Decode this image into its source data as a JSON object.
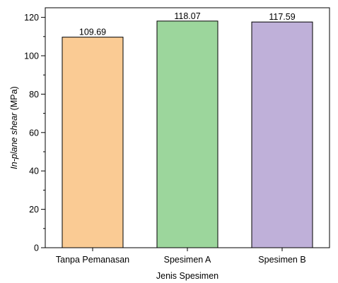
{
  "chart_data": {
    "type": "bar",
    "categories": [
      "Tanpa Pemanasan",
      "Spesimen A",
      "Spesimen B"
    ],
    "values": [
      109.69,
      118.07,
      117.59
    ],
    "data_labels": [
      "109.69",
      "118.07",
      "117.59"
    ],
    "colors": [
      "#FACB94",
      "#9CD69C",
      "#BFB0D9"
    ],
    "xlabel": "Jenis Spesimen",
    "ylabel_italic": "In-plane shear",
    "ylabel_unit": " (MPa)",
    "ylim": [
      0,
      125
    ],
    "yticks": [
      0,
      20,
      40,
      60,
      80,
      100,
      120
    ],
    "ytick_labels": [
      "0",
      "20",
      "40",
      "60",
      "80",
      "100",
      "120"
    ],
    "grid": false,
    "legend": "none"
  }
}
